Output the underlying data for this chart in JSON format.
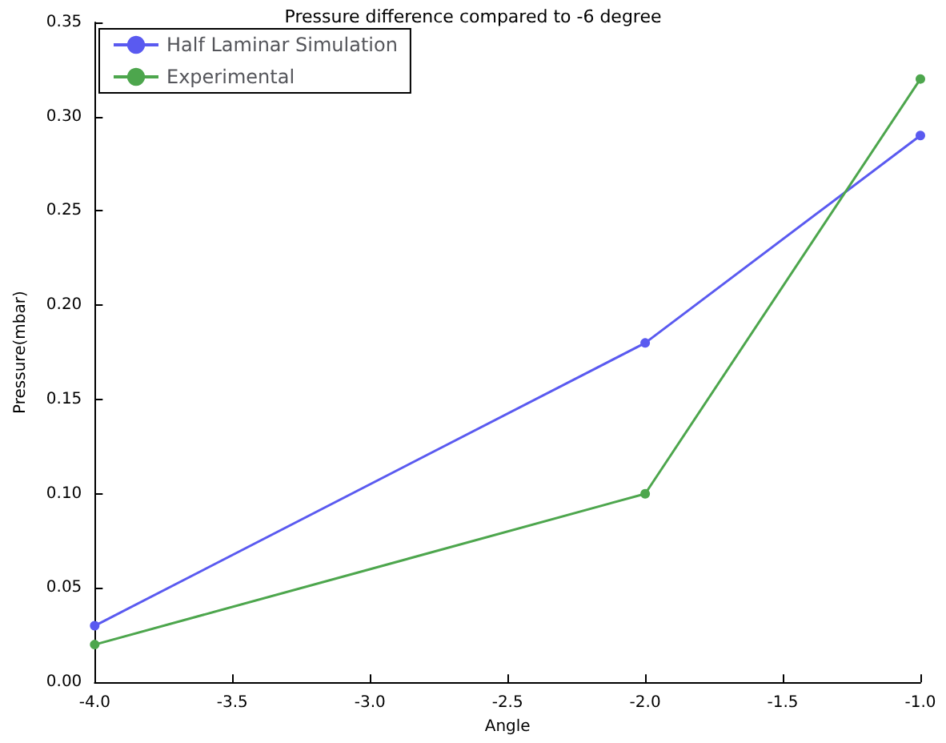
{
  "chart_data": {
    "type": "line",
    "title": "Pressure difference compared to -6 degree",
    "xlabel": "Angle",
    "ylabel": "Pressure(mbar)",
    "x": [
      -4,
      -2,
      -1
    ],
    "series": [
      {
        "name": "Half Laminar Simulation",
        "color": "#5a5af0",
        "values": [
          0.03,
          0.18,
          0.29
        ]
      },
      {
        "name": "Experimental",
        "color": "#4da64d",
        "values": [
          0.02,
          0.1,
          0.32
        ]
      }
    ],
    "xlim": [
      -4,
      -1
    ],
    "xticks": [
      {
        "value": -4,
        "label": "-4.0"
      },
      {
        "value": -3.5,
        "label": "-3.5"
      },
      {
        "value": -3,
        "label": "-3.0"
      },
      {
        "value": -2.5,
        "label": "-2.5"
      },
      {
        "value": -2,
        "label": "-2.0"
      },
      {
        "value": -1.5,
        "label": "-1.5"
      },
      {
        "value": -1,
        "label": "-1.0"
      }
    ],
    "ylim": [
      0,
      0.35
    ],
    "yticks": [
      {
        "value": 0,
        "label": "0.00"
      },
      {
        "value": 0.05,
        "label": "0.05"
      },
      {
        "value": 0.1,
        "label": "0.10"
      },
      {
        "value": 0.15,
        "label": "0.15"
      },
      {
        "value": 0.2,
        "label": "0.20"
      },
      {
        "value": 0.25,
        "label": "0.25"
      },
      {
        "value": 0.3,
        "label": "0.30"
      },
      {
        "value": 0.35,
        "label": "0.35"
      }
    ],
    "legend": "top left",
    "marker": "circle",
    "line_style": "solid",
    "grid": false
  }
}
